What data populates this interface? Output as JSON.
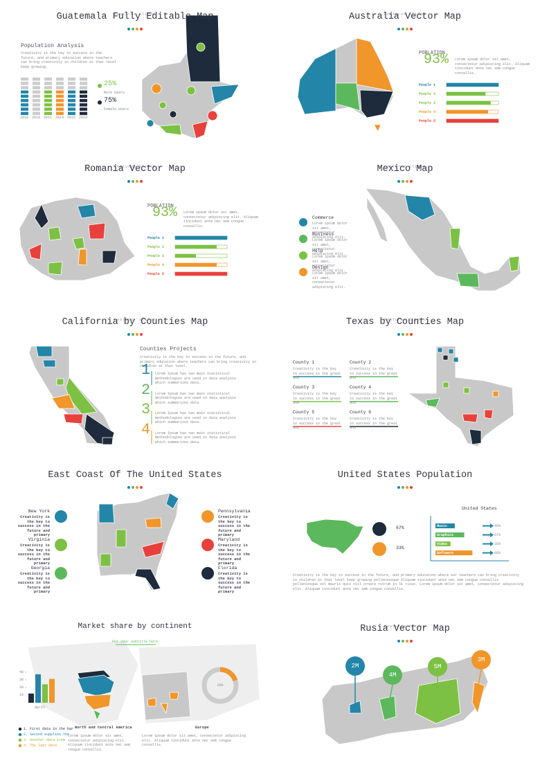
{
  "slides": [
    {
      "brand": "Features Slides",
      "title": "Guatemala Fully Editable Map",
      "heading": "Population Analysis",
      "text": "Creativity is the key to success in the future, and primary education where teachers can bring creativity in children at that level keep growing.",
      "years": [
        "2010",
        "2010",
        "2011",
        "2014",
        "2015",
        "2016"
      ],
      "stats": [
        {
          "value": "25%",
          "label": "Male Users"
        },
        {
          "value": "75%",
          "label": "Female Users"
        }
      ]
    },
    {
      "brand": "Features Slides",
      "title": "Australia Vector Map",
      "label": "POBLATION",
      "percent": "93%",
      "text": "Lorem ipsum dolor sit amet, consectetur adipiscing elit. Aliquam tincidunt ante nec sem congue convallis.",
      "people": [
        "People 1",
        "People 2",
        "People 3",
        "People 4",
        "People 5"
      ],
      "progress": [
        100,
        75,
        85,
        80,
        100
      ],
      "colors": [
        "#2386a8",
        "#7cc144",
        "#7cc144",
        "#f0962a",
        "#e8413c"
      ]
    },
    {
      "brand": "Features Slides",
      "title": "Romania Vector Map",
      "label": "POBLATION",
      "percent": "93%",
      "text": "Lorem ipsum dolor sit amet, consectetur adipiscing elit. Aliquam tincidunt ante nec sem congue convallis.",
      "people": [
        "People 1",
        "People 2",
        "People 3",
        "People 4",
        "People 5"
      ],
      "progress": [
        100,
        80,
        40,
        80,
        100
      ],
      "colors": [
        "#2386a8",
        "#7cc144",
        "#7cc144",
        "#f0962a",
        "#e8413c"
      ]
    },
    {
      "brand": "Features Slides",
      "title": "Mexico Map",
      "items": [
        {
          "name": "Commerce",
          "text": "Lorem ipsum dolor sit amet, consectetur adipiscing elit."
        },
        {
          "name": "Business",
          "text": "Lorem ipsum dolor sit amet, consectetur adipiscing elit."
        },
        {
          "name": "Help",
          "text": "Lorem ipsum dolor sit amet, consectetur adipiscing elit."
        },
        {
          "name": "Design",
          "text": "Lorem ipsum dolor sit amet, consectetur adipiscing elit."
        }
      ]
    },
    {
      "brand": "Features Slides",
      "title": "California by Counties Map",
      "heading": "Counties Projects",
      "text": "Creativity is the key to success in the future, and primary education where teachers can bring creativity in children at that level.",
      "steps": [
        {
          "number": "1",
          "text": "Lorem Ipsum has two main statistical methodologies are used in data analysis which summarizes data."
        },
        {
          "number": "2",
          "text": "Lorem Ipsum has two main statistical methodologies are used in data analysis which summarizes data."
        },
        {
          "number": "3",
          "text": "Lorem Ipsum has two main statistical methodologies are used in data analysis which summarizes data."
        },
        {
          "number": "4",
          "text": "Lorem Ipsum has two main statistical methodologies are used in data analysis which summarizes data."
        }
      ]
    },
    {
      "brand": "Features Slides",
      "title": "Texas by Counties Map",
      "counties": [
        {
          "name": "County 1",
          "text": "Creativity is the key to success in the great and"
        },
        {
          "name": "County 2",
          "text": "Creativity is the key to success in the great and"
        },
        {
          "name": "County 3",
          "text": "Creativity is the key to success in the great and"
        },
        {
          "name": "County 4",
          "text": "Creativity is the key to success in the great and"
        },
        {
          "name": "County 5",
          "text": "Creativity is the key to success in the great and"
        },
        {
          "name": "County 6",
          "text": "Creativity is the key to success in the great and"
        }
      ]
    },
    {
      "title": "East Coast Of The United States",
      "states": [
        {
          "name": "New York",
          "text": "Creativity is the key to success in the future and primary"
        },
        {
          "name": "Virginia",
          "text": "Creativity is the key to success in the future and primary"
        },
        {
          "name": "Georgia",
          "text": "Creativity is the key to success in the future and primary"
        },
        {
          "name": "Pennsylvania",
          "text": "Creativity is the key to success in the future and primary"
        },
        {
          "name": "Maryland",
          "text": "Creativity is the key to success in the future and primary"
        },
        {
          "name": "Florida",
          "text": "Creativity is the key to success in the future and primary"
        }
      ]
    },
    {
      "title": "United States Population",
      "percents": [
        "67%",
        "33%"
      ],
      "chart": {
        "title": "United States",
        "categories": [
          "Music",
          "Graphics",
          "Video",
          "Software"
        ],
        "values": [
          45,
          67,
          35,
          86
        ],
        "value_labels": [
          "45%",
          "67%",
          "35%",
          "86%"
        ],
        "colors": [
          "#2386a8",
          "#5cb85c",
          "#7cc144",
          "#f0962a"
        ]
      },
      "text": "Creativity is the key to success in the future, and primary education where our teachers can bring creativity in children at that level keep growing pellentesque Aliquam tincidunt ante nec sem congue convallis pellentesque vel mauris quis nisl ornare rutrum in lk risus. Lorem ipsum dolor sit amet, consectetur adipiscing elit. Aliquam tincidunt ante nec sem congue convallis."
    },
    {
      "title": "Market share by continent",
      "subtitle": "Put your subtitle here",
      "chart": {
        "category": "April",
        "ylim": [
          0,
          45
        ],
        "yticks": [
          10,
          20,
          30,
          40
        ],
        "values": [
          12,
          37,
          24,
          31
        ],
        "colors": [
          "#1e2b3c",
          "#2386a8",
          "#7cc144",
          "#f0962a"
        ]
      },
      "legend": [
        "1. First data in the bar",
        "2. Second supplies the",
        "3. Another data item",
        "4. The last data"
      ],
      "donut": {
        "value": 20,
        "label": "20%"
      },
      "regions": [
        {
          "name": "North and Central America",
          "text": "Lorem ipsum dolor sit amet, consectetur adipiscing elit. Aliquam tincidunt ante nec sem congue convallis."
        },
        {
          "name": "Europe",
          "text": "Lorem ipsum dolor sit amet, consectetur adipiscing elit. Aliquam tincidunt ante nec sem congue convallis."
        }
      ]
    },
    {
      "brand": "Features Slides",
      "title": "Rusia Vector Map",
      "pins": [
        "2M",
        "4M",
        "5M",
        "3M"
      ]
    }
  ]
}
